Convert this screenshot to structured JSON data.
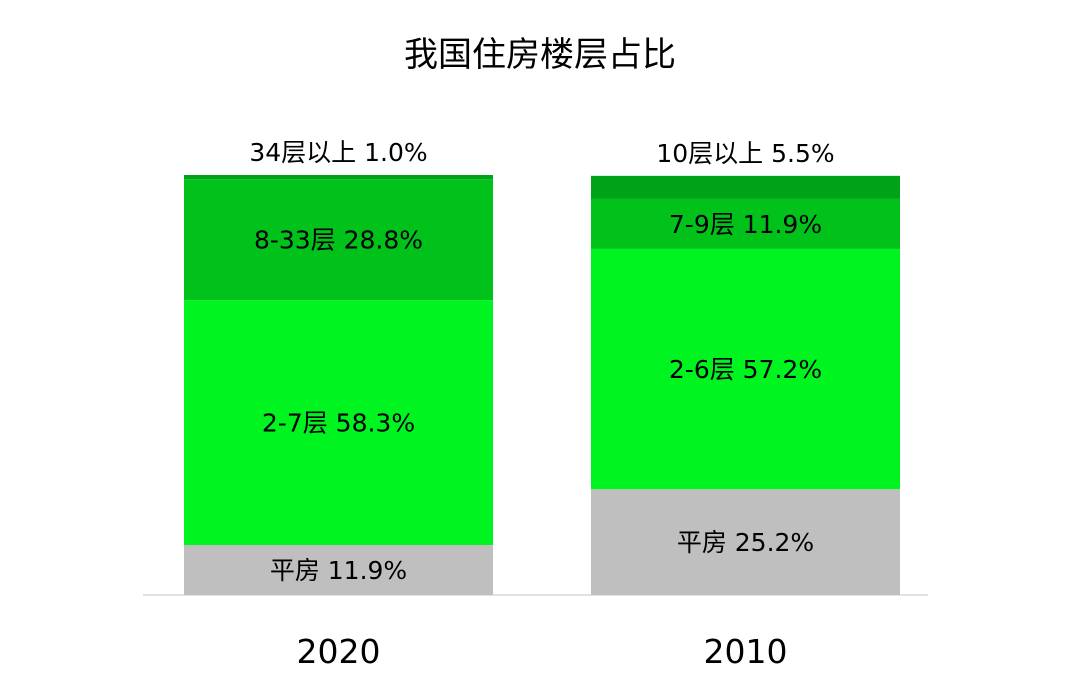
{
  "chart_data": {
    "type": "bar",
    "stacked": true,
    "title": "我国住房楼层占比",
    "categories": [
      "2020",
      "2010"
    ],
    "bars": [
      {
        "category": "2020",
        "segments": [
          {
            "label": "平房 11.9%",
            "value": 11.9,
            "color": "#bfbfbf"
          },
          {
            "label": "2-7层 58.3%",
            "value": 58.3,
            "color": "#00f520"
          },
          {
            "label": "8-33层 28.8%",
            "value": 28.8,
            "color": "#00c21a"
          },
          {
            "label": "34层以上 1.0%",
            "value": 1.0,
            "color": "#00a318"
          }
        ]
      },
      {
        "category": "2010",
        "segments": [
          {
            "label": "平房 25.2%",
            "value": 25.2,
            "color": "#bfbfbf"
          },
          {
            "label": "2-6层 57.2%",
            "value": 57.2,
            "color": "#00f520"
          },
          {
            "label": "7-9层 11.9%",
            "value": 11.9,
            "color": "#00c21a"
          },
          {
            "label": "10层以上 5.5%",
            "value": 5.5,
            "color": "#00a318"
          }
        ]
      }
    ],
    "ylim": [
      0,
      100
    ],
    "grid": false,
    "legend": "none"
  }
}
